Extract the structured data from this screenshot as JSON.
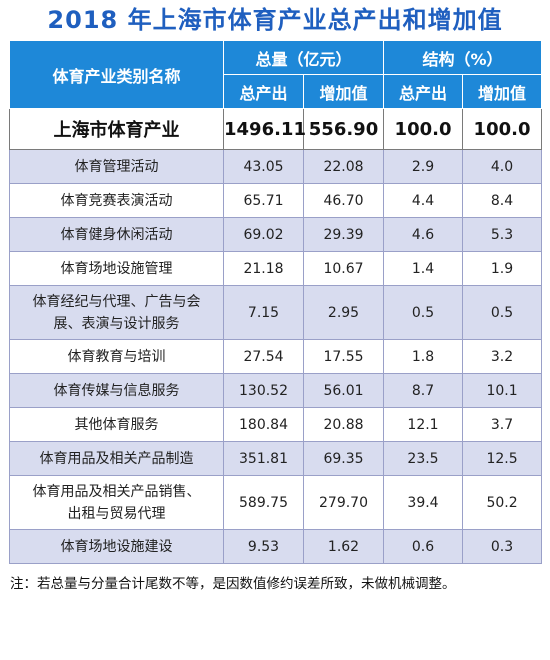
{
  "title": "2018 年上海市体育产业总产出和增加值",
  "header": {
    "category_col": "体育产业类别名称",
    "total_group": "总量（亿元）",
    "structure_group": "结构（%）",
    "output": "总产出",
    "added_value": "增加值",
    "output2": "总产出",
    "added_value2": "增加值"
  },
  "total_row": {
    "name": "上海市体育产业",
    "output": "1496.11",
    "added": "556.90",
    "output_pct": "100.0",
    "added_pct": "100.0"
  },
  "rows": [
    {
      "name": [
        "体育管理活动"
      ],
      "output": "43.05",
      "added": "22.08",
      "output_pct": "2.9",
      "added_pct": "4.0"
    },
    {
      "name": [
        "体育竞赛表演活动"
      ],
      "output": "65.71",
      "added": "46.70",
      "output_pct": "4.4",
      "added_pct": "8.4"
    },
    {
      "name": [
        "体育健身休闲活动"
      ],
      "output": "69.02",
      "added": "29.39",
      "output_pct": "4.6",
      "added_pct": "5.3"
    },
    {
      "name": [
        "体育场地设施管理"
      ],
      "output": "21.18",
      "added": "10.67",
      "output_pct": "1.4",
      "added_pct": "1.9"
    },
    {
      "name": [
        "体育经纪与代理、广告与会",
        "展、表演与设计服务"
      ],
      "output": "7.15",
      "added": "2.95",
      "output_pct": "0.5",
      "added_pct": "0.5"
    },
    {
      "name": [
        "体育教育与培训"
      ],
      "output": "27.54",
      "added": "17.55",
      "output_pct": "1.8",
      "added_pct": "3.2"
    },
    {
      "name": [
        "体育传媒与信息服务"
      ],
      "output": "130.52",
      "added": "56.01",
      "output_pct": "8.7",
      "added_pct": "10.1"
    },
    {
      "name": [
        "其他体育服务"
      ],
      "output": "180.84",
      "added": "20.88",
      "output_pct": "12.1",
      "added_pct": "3.7"
    },
    {
      "name": [
        "体育用品及相关产品制造"
      ],
      "output": "351.81",
      "added": "69.35",
      "output_pct": "23.5",
      "added_pct": "12.5"
    },
    {
      "name": [
        "体育用品及相关产品销售、",
        "出租与贸易代理"
      ],
      "output": "589.75",
      "added": "279.70",
      "output_pct": "39.4",
      "added_pct": "50.2"
    },
    {
      "name": [
        "体育场地设施建设"
      ],
      "output": "9.53",
      "added": "1.62",
      "output_pct": "0.6",
      "added_pct": "0.3"
    }
  ],
  "note": "注：若总量与分量合计尾数不等，是因数值修约误差所致，未做机械调整。",
  "colors": {
    "title": "#1f5fbf",
    "header_bg": "#1e88d8",
    "stripe": "#d8dcef"
  }
}
